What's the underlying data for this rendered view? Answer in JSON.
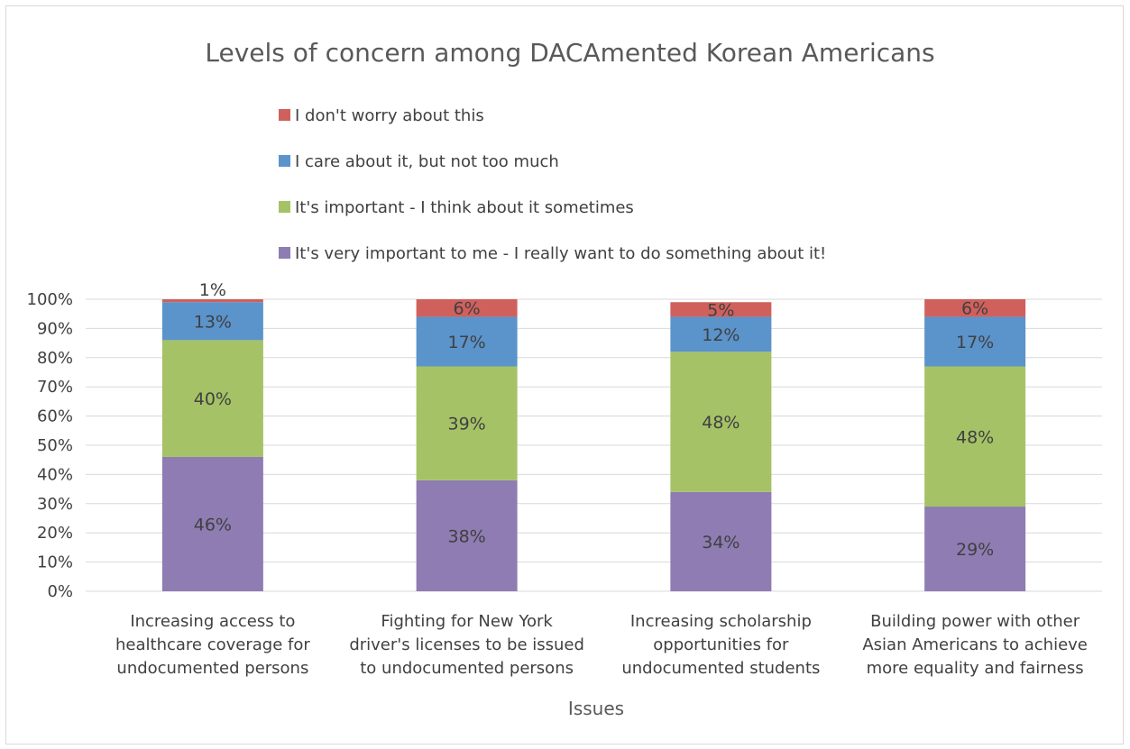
{
  "chart_data": {
    "type": "bar",
    "stacked": true,
    "percent": true,
    "title": "Levels of concern among DACAmented Korean Americans",
    "xlabel": "Issues",
    "ylabel": "",
    "ylim": [
      0,
      100
    ],
    "y_ticks": [
      "0%",
      "10%",
      "20%",
      "30%",
      "40%",
      "50%",
      "60%",
      "70%",
      "80%",
      "90%",
      "100%"
    ],
    "grid": true,
    "legend_position": "top",
    "categories": [
      [
        "Increasing access to",
        "healthcare coverage for",
        "undocumented persons"
      ],
      [
        "Fighting for New York",
        "driver's licenses to be issued",
        "to undocumented persons"
      ],
      [
        "Increasing scholarship",
        "opportunities for",
        "undocumented students"
      ],
      [
        "Building power with other",
        "Asian Americans to achieve",
        "more equality and fairness"
      ]
    ],
    "series": [
      {
        "name": "It's very important to me - I really want to do something about it!",
        "color": "#8e7cb3",
        "values": [
          46,
          38,
          34,
          29
        ],
        "labels": [
          "46%",
          "38%",
          "34%",
          "29%"
        ]
      },
      {
        "name": "It's important - I think about it sometimes",
        "color": "#a5c266",
        "values": [
          40,
          39,
          48,
          48
        ],
        "labels": [
          "40%",
          "39%",
          "48%",
          "48%"
        ]
      },
      {
        "name": "I care about it, but not too much",
        "color": "#5b93cb",
        "values": [
          13,
          17,
          12,
          17
        ],
        "labels": [
          "13%",
          "17%",
          "12%",
          "17%"
        ]
      },
      {
        "name": "I don't worry about this",
        "color": "#d0605c",
        "values": [
          1,
          6,
          5,
          6
        ],
        "labels": [
          "1%",
          "6%",
          "5%",
          "6%"
        ]
      }
    ],
    "legend_order": [
      3,
      2,
      1,
      0
    ]
  }
}
